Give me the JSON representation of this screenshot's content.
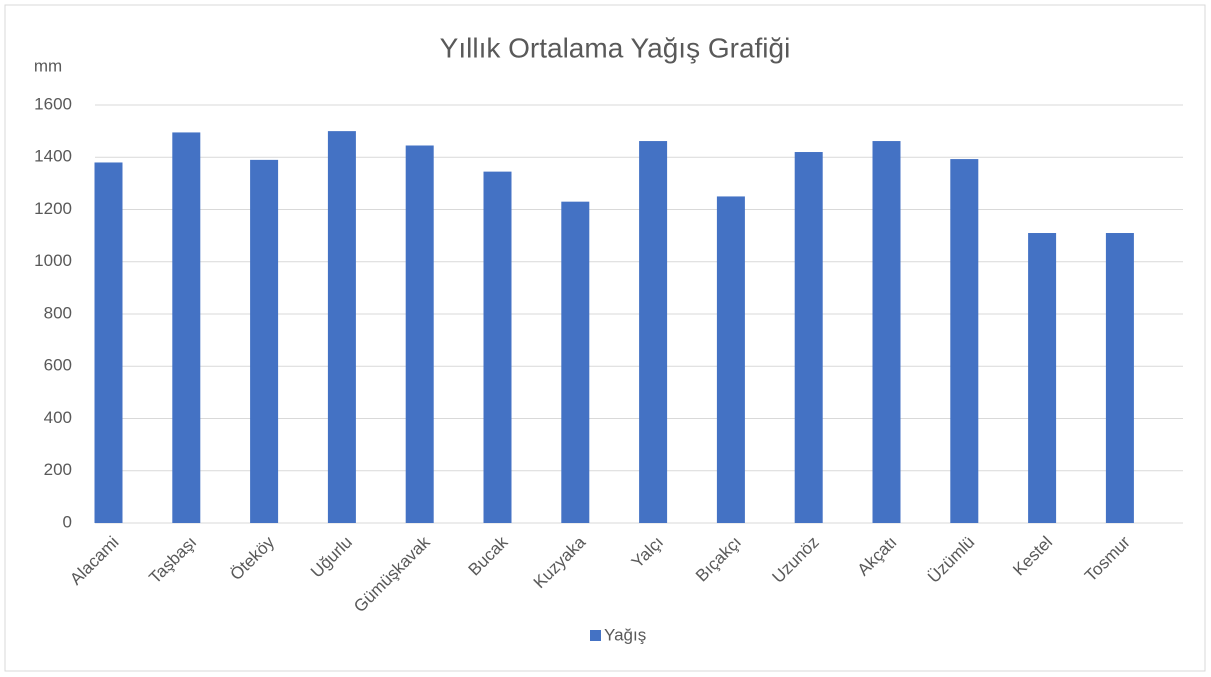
{
  "chart_data": {
    "type": "bar",
    "title": "Yıllık Ortalama Yağış Grafiği",
    "y_axis_label": "mm",
    "categories": [
      "Alacami",
      "Taşbaşı",
      "Öteköy",
      "Uğurlu",
      "Gümüşkavak",
      "Bucak",
      "Kuzyaka",
      "Yalçı",
      "Bıçakçı",
      "Uzunöz",
      "Akçatı",
      "Üzümlü",
      "Kestel",
      "Tosmur"
    ],
    "series": [
      {
        "name": "Yağış",
        "color": "#4472c4",
        "values": [
          1380,
          1495,
          1390,
          1500,
          1445,
          1345,
          1230,
          1462,
          1250,
          1420,
          1462,
          1393,
          1110,
          1110
        ]
      }
    ],
    "ylim": [
      0,
      1600
    ],
    "yticks": [
      0,
      200,
      400,
      600,
      800,
      1000,
      1200,
      1400,
      1600
    ],
    "grid": true,
    "legend": "bottom"
  }
}
